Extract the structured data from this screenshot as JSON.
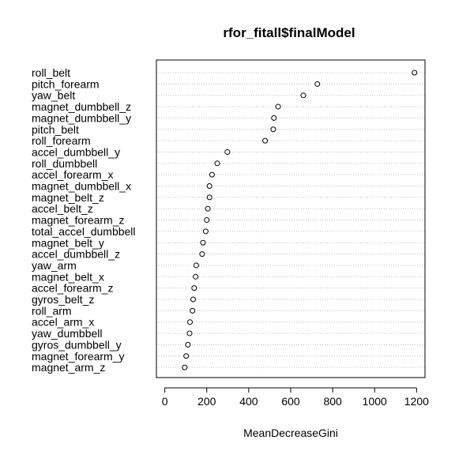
{
  "chart_data": {
    "type": "scatter",
    "title": "rfor_fitall$finalModel",
    "xlabel": "MeanDecreaseGini",
    "ylabel": "",
    "xlim": [
      -40,
      1240
    ],
    "xticks": [
      0,
      200,
      400,
      600,
      800,
      1000,
      1200
    ],
    "grid": "dotted horizontal lines per variable",
    "categories": [
      "roll_belt",
      "pitch_forearm",
      "yaw_belt",
      "magnet_dumbbell_z",
      "magnet_dumbbell_y",
      "pitch_belt",
      "roll_forearm",
      "accel_dumbbell_y",
      "roll_dumbbell",
      "accel_forearm_x",
      "magnet_dumbbell_x",
      "magnet_belt_z",
      "accel_belt_z",
      "magnet_forearm_z",
      "total_accel_dumbbell",
      "magnet_belt_y",
      "accel_dumbbell_z",
      "yaw_arm",
      "magnet_belt_x",
      "accel_forearm_z",
      "gyros_belt_z",
      "roll_arm",
      "accel_arm_x",
      "yaw_dumbbell",
      "gyros_dumbbell_y",
      "magnet_forearm_y",
      "magnet_arm_z"
    ],
    "values": [
      1190,
      727,
      660,
      540,
      520,
      517,
      478,
      298,
      250,
      225,
      213,
      213,
      205,
      200,
      195,
      182,
      178,
      150,
      147,
      140,
      135,
      132,
      120,
      118,
      110,
      102,
      95
    ]
  }
}
